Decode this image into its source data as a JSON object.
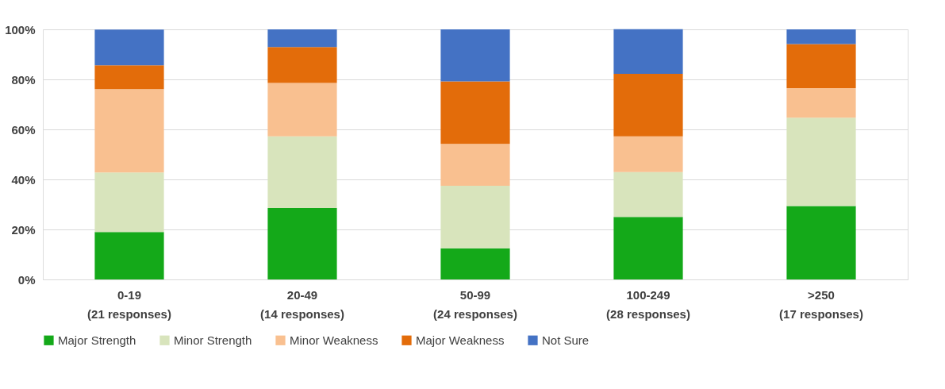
{
  "chart_data": {
    "type": "bar",
    "stacked": true,
    "categories": [
      "0-19\n(21 responses)",
      "20-49\n(14 responses)",
      "50-99\n(24 responses)",
      "100-249\n(28 responses)",
      ">250\n(17 responses)"
    ],
    "series": [
      {
        "name": "Major Strength",
        "color": "#14a919",
        "values": [
          19.0,
          28.6,
          12.5,
          25.0,
          29.4
        ]
      },
      {
        "name": "Minor Strength",
        "color": "#d8e4bc",
        "values": [
          23.8,
          28.6,
          25.0,
          17.9,
          35.3
        ]
      },
      {
        "name": "Minor Weakness",
        "color": "#f9c090",
        "values": [
          33.3,
          21.4,
          16.7,
          14.3,
          11.8
        ]
      },
      {
        "name": "Major Weakness",
        "color": "#e36c0a",
        "values": [
          9.5,
          14.3,
          25.0,
          25.0,
          17.6
        ]
      },
      {
        "name": "Not Sure",
        "color": "#4472c4",
        "values": [
          14.3,
          7.1,
          20.8,
          17.9,
          5.9
        ]
      }
    ],
    "ylim": [
      0,
      100
    ],
    "yticks": [
      {
        "value": 0,
        "label": "0%"
      },
      {
        "value": 20,
        "label": "20%"
      },
      {
        "value": 40,
        "label": "40%"
      },
      {
        "value": 60,
        "label": "60%"
      },
      {
        "value": 80,
        "label": "80%"
      },
      {
        "value": 100,
        "label": "100%"
      }
    ],
    "grid": "y",
    "legend": "bottom"
  }
}
